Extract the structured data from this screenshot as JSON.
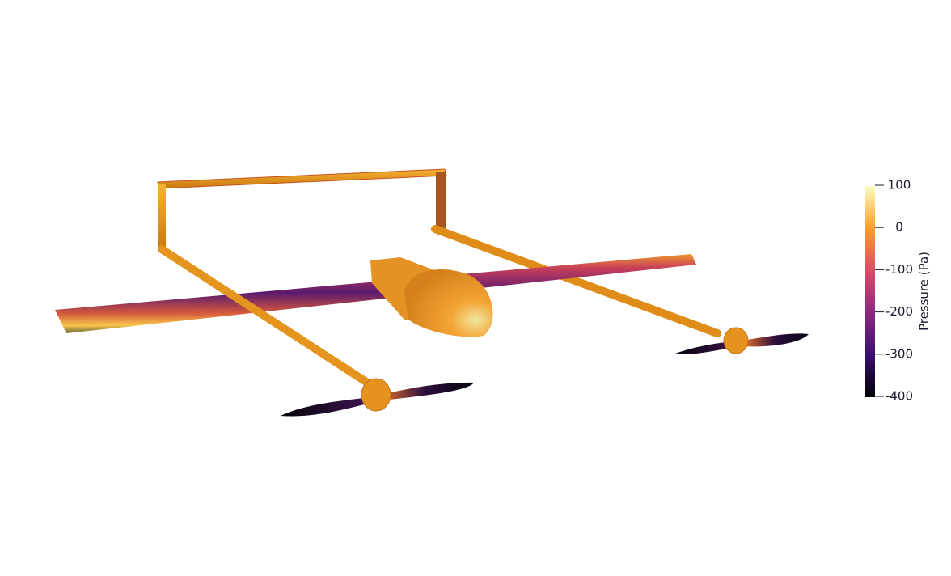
{
  "colorbar": {
    "title": "Pressure (Pa)",
    "range": [
      -400,
      100
    ],
    "ticks": [
      100,
      0,
      -100,
      -200,
      -300,
      -400
    ],
    "colors": [
      "#000004",
      "#3b0f70",
      "#8c2981",
      "#de4968",
      "#fe9f29",
      "#fcfdbf"
    ]
  }
}
